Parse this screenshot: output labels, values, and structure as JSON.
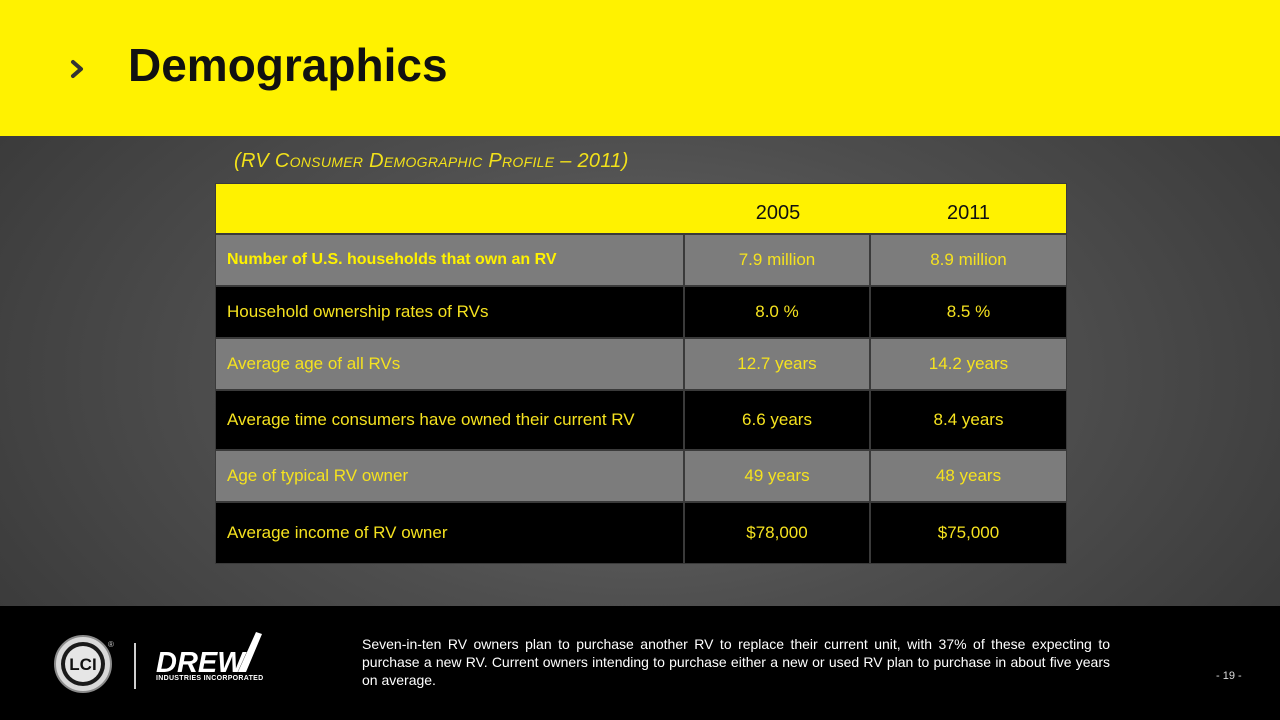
{
  "header": {
    "title": "Demographics",
    "subtitle": "(RV Consumer Demographic Profile – 2011)",
    "chevron_icon": "chevron-right-icon"
  },
  "table": {
    "columns": [
      "",
      "2005",
      "2011"
    ],
    "rows": [
      {
        "label": "Number of U.S. households that own an RV",
        "v2005": "7.9 million",
        "v2011": "8.9 million"
      },
      {
        "label": "Household ownership rates of RVs",
        "v2005": "8.0 %",
        "v2011": "8.5 %"
      },
      {
        "label": "Average age of all RVs",
        "v2005": "12.7 years",
        "v2011": "14.2 years"
      },
      {
        "label": "Average time consumers have owned their current RV",
        "v2005": "6.6 years",
        "v2011": "8.4 years"
      },
      {
        "label": "Age of typical RV owner",
        "v2005": "49 years",
        "v2011": "48 years"
      },
      {
        "label": "Average income of RV owner",
        "v2005": "$78,000",
        "v2011": "$75,000"
      }
    ]
  },
  "footer": {
    "lci_logo_text": "LCI",
    "lci_reg": "®",
    "drew_logo_text": "DREW",
    "drew_sub": "INDUSTRIES INCORPORATED",
    "note": "Seven-in-ten RV owners plan to purchase another RV to replace their current unit, with 37% of these expecting to purchase a new RV.  Current owners intending to purchase either a new or used RV plan to purchase in about five years on average.",
    "page_number": "- 19 -"
  },
  "colors": {
    "accent": "#fff200",
    "table_text": "#f5e21f",
    "row_gray": "#7c7c7c",
    "row_black": "#000000"
  }
}
